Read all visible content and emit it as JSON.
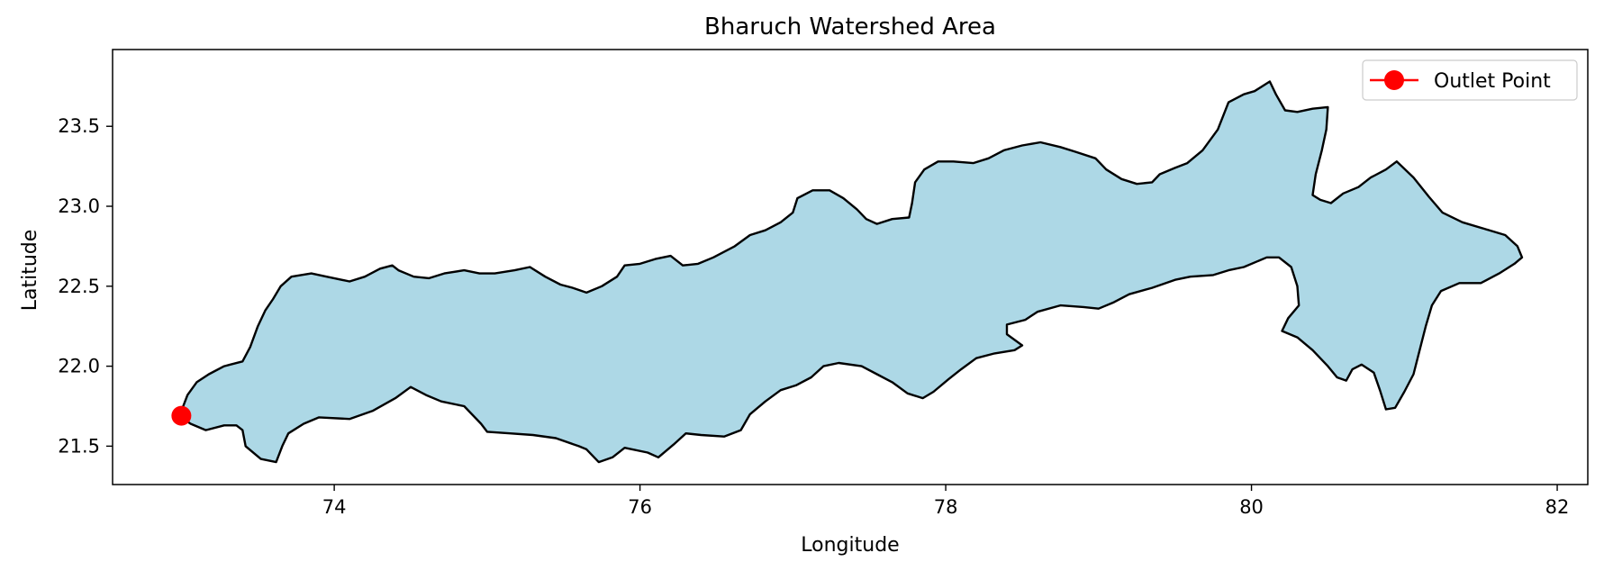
{
  "chart_data": {
    "type": "map",
    "title": "Bharuch Watershed Area",
    "xlabel": "Longitude",
    "ylabel": "Latitude",
    "xlim": [
      72.55,
      82.2
    ],
    "ylim": [
      21.26,
      23.98
    ],
    "xticks": [
      74,
      76,
      78,
      80,
      82
    ],
    "yticks": [
      21.5,
      22.0,
      22.5,
      23.0,
      23.5
    ],
    "xtick_labels": [
      "74",
      "76",
      "78",
      "80",
      "82"
    ],
    "ytick_labels": [
      "21.5",
      "22.0",
      "22.5",
      "23.0",
      "23.5"
    ],
    "grid": false,
    "legend_position": "top-right",
    "legend": [
      {
        "label": "Outlet Point",
        "marker": "circle",
        "color": "#ff0000"
      }
    ],
    "watershed": {
      "fill": "#add8e6",
      "edge": "#000000",
      "boundary": [
        [
          73.06,
          21.64
        ],
        [
          73.16,
          21.6
        ],
        [
          73.28,
          21.63
        ],
        [
          73.36,
          21.63
        ],
        [
          73.4,
          21.6
        ],
        [
          73.42,
          21.5
        ],
        [
          73.52,
          21.42
        ],
        [
          73.62,
          21.4
        ],
        [
          73.66,
          21.5
        ],
        [
          73.7,
          21.58
        ],
        [
          73.8,
          21.64
        ],
        [
          73.9,
          21.68
        ],
        [
          74.1,
          21.67
        ],
        [
          74.25,
          21.72
        ],
        [
          74.4,
          21.8
        ],
        [
          74.5,
          21.87
        ],
        [
          74.6,
          21.82
        ],
        [
          74.7,
          21.78
        ],
        [
          74.85,
          21.75
        ],
        [
          74.96,
          21.64
        ],
        [
          75.0,
          21.59
        ],
        [
          75.15,
          21.58
        ],
        [
          75.3,
          21.57
        ],
        [
          75.45,
          21.55
        ],
        [
          75.6,
          21.5
        ],
        [
          75.65,
          21.48
        ],
        [
          75.73,
          21.4
        ],
        [
          75.82,
          21.43
        ],
        [
          75.9,
          21.49
        ],
        [
          76.05,
          21.46
        ],
        [
          76.12,
          21.43
        ],
        [
          76.22,
          21.51
        ],
        [
          76.3,
          21.58
        ],
        [
          76.4,
          21.57
        ],
        [
          76.55,
          21.56
        ],
        [
          76.66,
          21.6
        ],
        [
          76.72,
          21.7
        ],
        [
          76.82,
          21.78
        ],
        [
          76.92,
          21.85
        ],
        [
          77.02,
          21.88
        ],
        [
          77.12,
          21.93
        ],
        [
          77.2,
          22.0
        ],
        [
          77.3,
          22.02
        ],
        [
          77.45,
          22.0
        ],
        [
          77.55,
          21.95
        ],
        [
          77.65,
          21.9
        ],
        [
          77.75,
          21.83
        ],
        [
          77.85,
          21.8
        ],
        [
          77.92,
          21.84
        ],
        [
          78.02,
          21.92
        ],
        [
          78.1,
          21.98
        ],
        [
          78.2,
          22.05
        ],
        [
          78.32,
          22.08
        ],
        [
          78.45,
          22.1
        ],
        [
          78.5,
          22.13
        ],
        [
          78.4,
          22.2
        ],
        [
          78.4,
          22.26
        ],
        [
          78.52,
          22.29
        ],
        [
          78.6,
          22.34
        ],
        [
          78.75,
          22.38
        ],
        [
          78.9,
          22.37
        ],
        [
          79.0,
          22.36
        ],
        [
          79.1,
          22.4
        ],
        [
          79.2,
          22.45
        ],
        [
          79.35,
          22.49
        ],
        [
          79.5,
          22.54
        ],
        [
          79.6,
          22.56
        ],
        [
          79.75,
          22.57
        ],
        [
          79.85,
          22.6
        ],
        [
          79.95,
          22.62
        ],
        [
          80.1,
          22.68
        ],
        [
          80.18,
          22.68
        ],
        [
          80.26,
          22.62
        ],
        [
          80.3,
          22.5
        ],
        [
          80.31,
          22.38
        ],
        [
          80.24,
          22.3
        ],
        [
          80.2,
          22.22
        ],
        [
          80.3,
          22.18
        ],
        [
          80.4,
          22.1
        ],
        [
          80.5,
          22.0
        ],
        [
          80.56,
          21.93
        ],
        [
          80.62,
          21.91
        ],
        [
          80.66,
          21.98
        ],
        [
          80.72,
          22.01
        ],
        [
          80.8,
          21.96
        ],
        [
          80.84,
          21.85
        ],
        [
          80.88,
          21.73
        ],
        [
          80.94,
          21.74
        ],
        [
          81.0,
          21.84
        ],
        [
          81.06,
          21.95
        ],
        [
          81.1,
          22.1
        ],
        [
          81.14,
          22.25
        ],
        [
          81.18,
          22.38
        ],
        [
          81.24,
          22.47
        ],
        [
          81.36,
          22.52
        ],
        [
          81.5,
          22.52
        ],
        [
          81.62,
          22.58
        ],
        [
          81.72,
          22.64
        ],
        [
          81.77,
          22.68
        ],
        [
          81.74,
          22.75
        ],
        [
          81.66,
          22.82
        ],
        [
          81.52,
          22.86
        ],
        [
          81.38,
          22.9
        ],
        [
          81.25,
          22.96
        ],
        [
          81.16,
          23.06
        ],
        [
          81.06,
          23.18
        ],
        [
          80.95,
          23.28
        ],
        [
          80.88,
          23.23
        ],
        [
          80.78,
          23.18
        ],
        [
          80.7,
          23.12
        ],
        [
          80.6,
          23.08
        ],
        [
          80.52,
          23.02
        ],
        [
          80.45,
          23.04
        ],
        [
          80.4,
          23.07
        ],
        [
          80.42,
          23.2
        ],
        [
          80.46,
          23.35
        ],
        [
          80.49,
          23.48
        ],
        [
          80.5,
          23.62
        ],
        [
          80.4,
          23.61
        ],
        [
          80.3,
          23.59
        ],
        [
          80.22,
          23.6
        ],
        [
          80.16,
          23.7
        ],
        [
          80.12,
          23.78
        ],
        [
          80.02,
          23.72
        ],
        [
          79.95,
          23.7
        ],
        [
          79.85,
          23.65
        ],
        [
          79.78,
          23.48
        ],
        [
          79.68,
          23.35
        ],
        [
          79.58,
          23.27
        ],
        [
          79.5,
          23.24
        ],
        [
          79.4,
          23.2
        ],
        [
          79.35,
          23.15
        ],
        [
          79.25,
          23.14
        ],
        [
          79.15,
          23.17
        ],
        [
          79.05,
          23.23
        ],
        [
          78.98,
          23.3
        ],
        [
          78.85,
          23.34
        ],
        [
          78.75,
          23.37
        ],
        [
          78.62,
          23.4
        ],
        [
          78.5,
          23.38
        ],
        [
          78.38,
          23.35
        ],
        [
          78.28,
          23.3
        ],
        [
          78.18,
          23.27
        ],
        [
          78.05,
          23.28
        ],
        [
          77.95,
          23.28
        ],
        [
          77.86,
          23.23
        ],
        [
          77.8,
          23.15
        ],
        [
          77.78,
          23.02
        ],
        [
          77.76,
          22.93
        ],
        [
          77.65,
          22.92
        ],
        [
          77.55,
          22.89
        ],
        [
          77.48,
          22.92
        ],
        [
          77.42,
          22.98
        ],
        [
          77.33,
          23.05
        ],
        [
          77.24,
          23.1
        ],
        [
          77.13,
          23.1
        ],
        [
          77.03,
          23.05
        ],
        [
          77.0,
          22.96
        ],
        [
          76.92,
          22.9
        ],
        [
          76.82,
          22.85
        ],
        [
          76.72,
          22.82
        ],
        [
          76.62,
          22.75
        ],
        [
          76.48,
          22.68
        ],
        [
          76.38,
          22.64
        ],
        [
          76.28,
          22.63
        ],
        [
          76.2,
          22.69
        ],
        [
          76.1,
          22.67
        ],
        [
          76.0,
          22.64
        ],
        [
          75.9,
          22.63
        ],
        [
          75.85,
          22.56
        ],
        [
          75.75,
          22.5
        ],
        [
          75.65,
          22.46
        ],
        [
          75.56,
          22.49
        ],
        [
          75.48,
          22.51
        ],
        [
          75.38,
          22.56
        ],
        [
          75.28,
          22.62
        ],
        [
          75.18,
          22.6
        ],
        [
          75.05,
          22.58
        ],
        [
          74.95,
          22.58
        ],
        [
          74.85,
          22.6
        ],
        [
          74.72,
          22.58
        ],
        [
          74.62,
          22.55
        ],
        [
          74.52,
          22.56
        ],
        [
          74.42,
          22.6
        ],
        [
          74.38,
          22.63
        ],
        [
          74.3,
          22.61
        ],
        [
          74.2,
          22.56
        ],
        [
          74.1,
          22.53
        ],
        [
          73.95,
          22.56
        ],
        [
          73.85,
          22.58
        ],
        [
          73.72,
          22.56
        ],
        [
          73.65,
          22.5
        ],
        [
          73.6,
          22.42
        ],
        [
          73.55,
          22.35
        ],
        [
          73.5,
          22.25
        ],
        [
          73.45,
          22.12
        ],
        [
          73.4,
          22.03
        ],
        [
          73.28,
          22.0
        ],
        [
          73.18,
          21.95
        ],
        [
          73.1,
          21.9
        ],
        [
          73.04,
          21.82
        ],
        [
          73.0,
          21.72
        ],
        [
          73.03,
          21.66
        ]
      ]
    },
    "outlet_point": {
      "lon": 73.0,
      "lat": 21.69,
      "color": "#ff0000"
    }
  }
}
